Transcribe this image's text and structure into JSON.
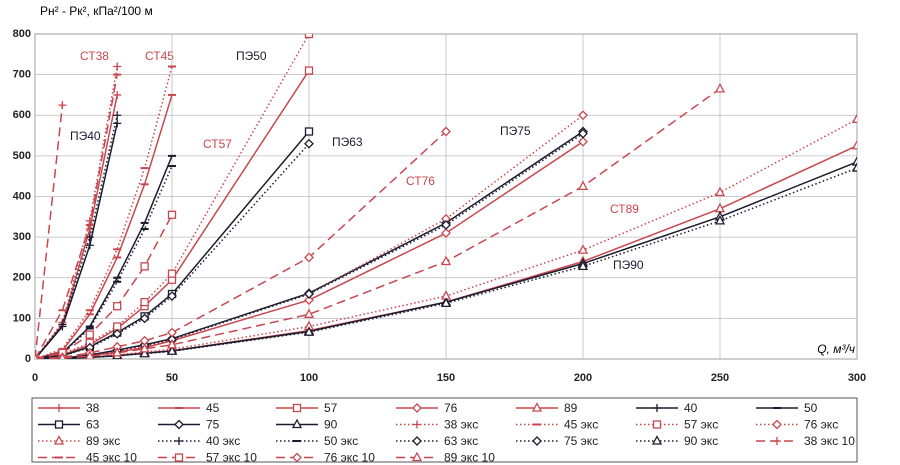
{
  "chart_data": {
    "type": "line",
    "y_label": "Pн² - Pк², кПа²/100 м",
    "x_label": "Q, м³/ч",
    "x": [
      0,
      10,
      20,
      30,
      40,
      50,
      100,
      150,
      200,
      250,
      300
    ],
    "xlim": [
      0,
      300
    ],
    "xticks": [
      0,
      50,
      100,
      150,
      200,
      250,
      300
    ],
    "ylim": [
      0,
      800
    ],
    "yticks": [
      0,
      100,
      200,
      300,
      400,
      500,
      600,
      700,
      800
    ],
    "grid": true,
    "annotations": [
      "СТ38",
      "СТ45",
      "ПЭ50",
      "ПЭ40",
      "СТ57",
      "ПЭ63",
      "СТ76",
      "ПЭ75",
      "СТ89",
      "ПЭ90"
    ],
    "series": [
      {
        "name": "38",
        "color": "#c8474f",
        "dash": "solid",
        "marker": "plus",
        "values": [
          0,
          85,
          320,
          650,
          null,
          null,
          null,
          null,
          null,
          null,
          null
        ]
      },
      {
        "name": "45",
        "color": "#c8474f",
        "dash": "solid",
        "marker": "dash",
        "values": [
          0,
          20,
          110,
          250,
          430,
          650,
          null,
          null,
          null,
          null,
          null
        ]
      },
      {
        "name": "57",
        "color": "#c8474f",
        "dash": "solid",
        "marker": "square",
        "values": [
          0,
          10,
          35,
          75,
          130,
          195,
          710,
          null,
          null,
          null,
          null
        ]
      },
      {
        "name": "76",
        "color": "#c8474f",
        "dash": "solid",
        "marker": "diamond",
        "values": [
          0,
          2,
          8,
          17,
          28,
          45,
          145,
          310,
          535,
          null,
          null
        ]
      },
      {
        "name": "89",
        "color": "#c8474f",
        "dash": "solid",
        "marker": "triangle",
        "values": [
          0,
          1,
          4,
          9,
          15,
          20,
          70,
          140,
          240,
          370,
          525
        ]
      },
      {
        "name": "40",
        "color": "#1b1b2e",
        "dash": "solid",
        "marker": "plus",
        "values": [
          0,
          80,
          280,
          580,
          null,
          null,
          null,
          null,
          null,
          null,
          null
        ]
      },
      {
        "name": "50",
        "color": "#1b1b2e",
        "dash": "solid",
        "marker": "dash",
        "values": [
          0,
          15,
          80,
          200,
          335,
          500,
          null,
          null,
          null,
          null,
          null
        ]
      },
      {
        "name": "63",
        "color": "#1b1b2e",
        "dash": "solid",
        "marker": "square",
        "values": [
          0,
          8,
          30,
          65,
          105,
          160,
          560,
          null,
          null,
          null,
          null
        ]
      },
      {
        "name": "75",
        "color": "#1b1b2e",
        "dash": "solid",
        "marker": "diamond",
        "values": [
          0,
          2,
          10,
          22,
          35,
          50,
          162,
          335,
          560,
          null,
          null
        ]
      },
      {
        "name": "90",
        "color": "#1b1b2e",
        "dash": "solid",
        "marker": "triangle",
        "values": [
          0,
          1,
          4,
          8,
          14,
          20,
          68,
          140,
          235,
          350,
          485
        ]
      },
      {
        "name": "38 экс",
        "color": "#c8474f",
        "dash": "dotted",
        "marker": "plus",
        "values": [
          0,
          90,
          340,
          720,
          null,
          null,
          null,
          null,
          null,
          null,
          null
        ]
      },
      {
        "name": "45 экс",
        "color": "#c8474f",
        "dash": "dotted",
        "marker": "dash",
        "values": [
          0,
          25,
          120,
          270,
          470,
          720,
          null,
          null,
          null,
          null,
          null
        ]
      },
      {
        "name": "57 экс",
        "color": "#c8474f",
        "dash": "dotted",
        "marker": "square",
        "values": [
          0,
          12,
          40,
          80,
          140,
          210,
          800,
          null,
          null,
          null,
          null
        ]
      },
      {
        "name": "76 экс",
        "color": "#c8474f",
        "dash": "dotted",
        "marker": "diamond",
        "values": [
          0,
          2,
          9,
          19,
          32,
          48,
          160,
          345,
          600,
          null,
          null
        ]
      },
      {
        "name": "89 экс",
        "color": "#c8474f",
        "dash": "dotted",
        "marker": "triangle",
        "values": [
          0,
          1,
          5,
          10,
          17,
          24,
          80,
          155,
          268,
          410,
          590
        ]
      },
      {
        "name": "40 экс",
        "color": "#1b1b2e",
        "dash": "dotted",
        "marker": "plus",
        "values": [
          0,
          85,
          300,
          600,
          null,
          null,
          null,
          null,
          null,
          null,
          null
        ]
      },
      {
        "name": "50 экс",
        "color": "#1b1b2e",
        "dash": "dotted",
        "marker": "dash",
        "values": [
          0,
          14,
          75,
          190,
          320,
          475,
          null,
          null,
          null,
          null,
          null
        ]
      },
      {
        "name": "63 экс",
        "color": "#1b1b2e",
        "dash": "dotted",
        "marker": "diamond",
        "values": [
          0,
          8,
          28,
          62,
          100,
          155,
          530,
          null,
          null,
          null,
          null
        ]
      },
      {
        "name": "75 экс",
        "color": "#1b1b2e",
        "dash": "dotted",
        "marker": "diamond",
        "values": [
          0,
          2,
          10,
          21,
          34,
          48,
          160,
          330,
          555,
          null,
          null
        ]
      },
      {
        "name": "90 экс",
        "color": "#1b1b2e",
        "dash": "dotted",
        "marker": "triangle",
        "values": [
          0,
          1,
          4,
          8,
          13,
          19,
          66,
          137,
          228,
          340,
          470
        ]
      },
      {
        "name": "38 экс 10",
        "color": "#c8474f",
        "dash": "dashed",
        "marker": "plus",
        "values": [
          0,
          625,
          null,
          null,
          null,
          null,
          null,
          null,
          null,
          null,
          null
        ]
      },
      {
        "name": "45 экс 10",
        "color": "#c8474f",
        "dash": "dashed",
        "marker": "dash",
        "values": [
          0,
          120,
          330,
          700,
          null,
          null,
          null,
          null,
          null,
          null,
          null
        ]
      },
      {
        "name": "57 экс 10",
        "color": "#c8474f",
        "dash": "dashed",
        "marker": "square",
        "values": [
          0,
          15,
          60,
          130,
          228,
          355,
          null,
          null,
          null,
          null,
          null
        ]
      },
      {
        "name": "76 экс 10",
        "color": "#c8474f",
        "dash": "dashed",
        "marker": "diamond",
        "values": [
          0,
          4,
          15,
          30,
          45,
          65,
          250,
          560,
          null,
          null,
          null
        ]
      },
      {
        "name": "89 экс 10",
        "color": "#c8474f",
        "dash": "dashed",
        "marker": "triangle",
        "values": [
          0,
          2,
          7,
          15,
          25,
          35,
          110,
          240,
          425,
          665,
          null
        ]
      }
    ]
  }
}
